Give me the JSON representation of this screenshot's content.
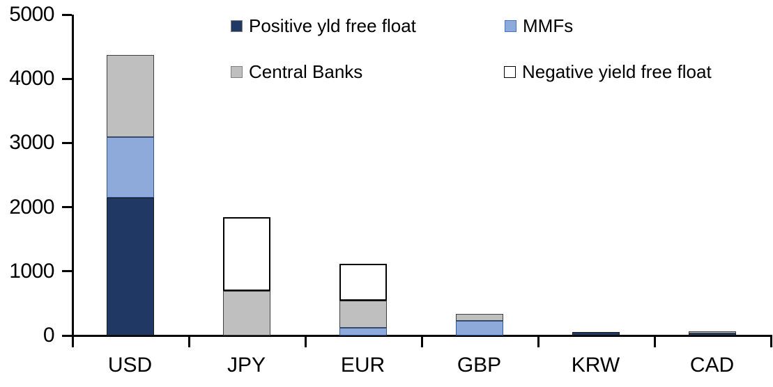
{
  "chart_data": {
    "type": "bar",
    "stacked": true,
    "title": "",
    "xlabel": "",
    "ylabel": "",
    "categories": [
      "USD",
      "JPY",
      "EUR",
      "GBP",
      "KRW",
      "CAD"
    ],
    "series": [
      {
        "name": "Positive yld free float",
        "color": "#1F3864",
        "border_color": "#1a1a1a",
        "values": [
          2150,
          0,
          0,
          0,
          50,
          40
        ]
      },
      {
        "name": "MMFs",
        "color": "#8EAADB",
        "border_color": "#2F5597",
        "values": [
          940,
          0,
          120,
          230,
          0,
          0
        ]
      },
      {
        "name": "Central Banks",
        "color": "#BFBFBF",
        "border_color": "#3f3f3f",
        "values": [
          1280,
          695,
          420,
          105,
          0,
          30
        ]
      },
      {
        "name": "Negative yield free float",
        "color": "#FFFFFF",
        "border_color": "#000000",
        "values": [
          0,
          1145,
          575,
          0,
          0,
          0
        ]
      }
    ],
    "totals": [
      4370,
      1840,
      1115,
      335,
      50,
      70
    ],
    "ylim": [
      0,
      5000
    ],
    "yticks": [
      0,
      1000,
      2000,
      3000,
      4000,
      5000
    ],
    "grid": false,
    "legend_position": "top"
  },
  "legend": {
    "items": [
      {
        "label": "Positive yld free float",
        "fill": "#1F3864",
        "border": "#7f7f7f"
      },
      {
        "label": "MMFs",
        "fill": "#8EAADB",
        "border": "#4472C4"
      },
      {
        "label": "Central Banks",
        "fill": "#BFBFBF",
        "border": "#7f7f7f"
      },
      {
        "label": "Negative yield free float",
        "fill": "#FFFFFF",
        "border": "#000000"
      }
    ]
  },
  "colors": {
    "axis": "#000000",
    "text": "#000000",
    "background": "#FFFFFF"
  }
}
